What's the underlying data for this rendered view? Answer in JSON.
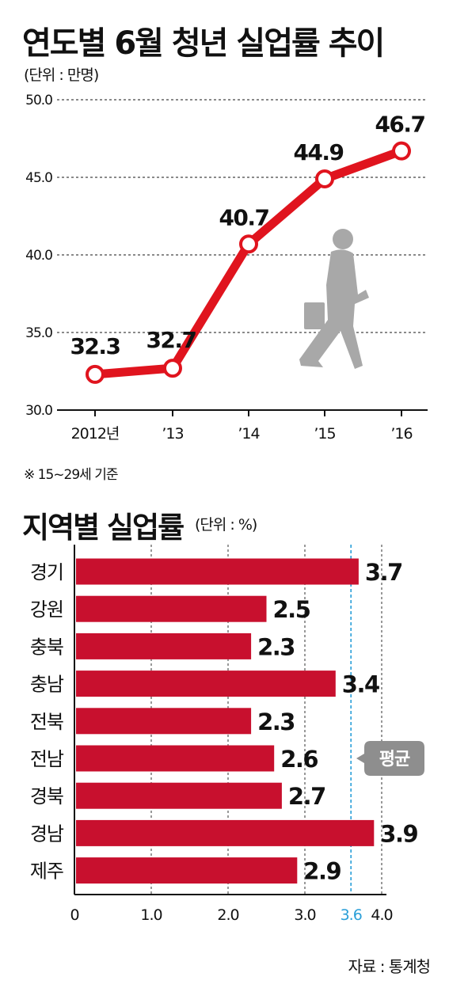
{
  "chart_data": [
    {
      "type": "line",
      "title": "연도별 6월 청년 실업률 추이",
      "unit": "(단위 : 만명)",
      "categories": [
        "2012년",
        "’13",
        "’14",
        "’15",
        "’16"
      ],
      "series": [
        {
          "values": [
            32.3,
            32.7,
            40.7,
            44.9,
            46.7
          ]
        }
      ],
      "value_labels": [
        "32.3",
        "32.7",
        "40.7",
        "44.9",
        "46.7"
      ],
      "y_ticks": [
        "30.0",
        "35.0",
        "40.0",
        "45.0",
        "50.0"
      ],
      "ylim": [
        30,
        50
      ],
      "grid": true,
      "note": "※ 15~29세 기준",
      "line_color": "#e0141e"
    },
    {
      "type": "bar",
      "orientation": "horizontal",
      "title": "지역별 실업률",
      "unit": "(단위 : %)",
      "categories": [
        "경기",
        "강원",
        "충북",
        "충남",
        "전북",
        "전남",
        "경북",
        "경남",
        "제주"
      ],
      "values": [
        3.7,
        2.5,
        2.3,
        3.4,
        2.3,
        2.6,
        2.7,
        3.9,
        2.9
      ],
      "value_labels": [
        "3.7",
        "2.5",
        "2.3",
        "3.4",
        "2.3",
        "2.6",
        "2.7",
        "3.9",
        "2.9"
      ],
      "x_ticks": [
        "0",
        "1.0",
        "2.0",
        "3.0",
        "4.0"
      ],
      "xlim": [
        0,
        4.0
      ],
      "average": {
        "value": 3.6,
        "label": "3.6",
        "callout": "평균"
      },
      "bar_color": "#c8102e",
      "average_color": "#2a9fd8"
    }
  ],
  "source": "자료 : 통계청"
}
